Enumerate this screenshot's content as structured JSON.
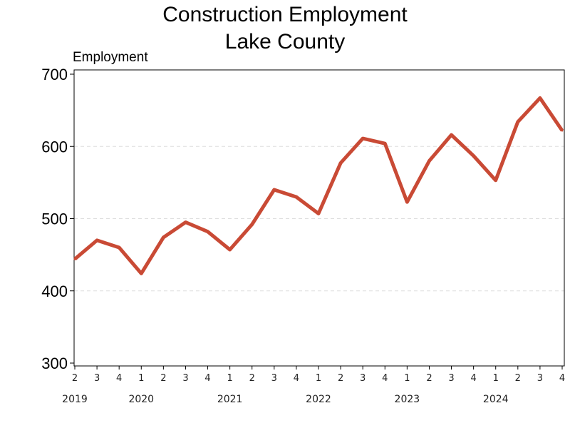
{
  "chart_data": {
    "type": "line",
    "title": "Construction Employment",
    "subtitle": "Lake County",
    "ylabel": "Employment",
    "xlabel": "",
    "ylim": [
      300,
      700
    ],
    "yticks": [
      300,
      400,
      500,
      600,
      700
    ],
    "grid": "horizontal dashed",
    "color": "#c94a35",
    "x": [
      "2019 Q2",
      "2019 Q3",
      "2019 Q4",
      "2020 Q1",
      "2020 Q2",
      "2020 Q3",
      "2020 Q4",
      "2021 Q1",
      "2021 Q2",
      "2021 Q3",
      "2021 Q4",
      "2022 Q1",
      "2022 Q2",
      "2022 Q3",
      "2022 Q4",
      "2023 Q1",
      "2023 Q2",
      "2023 Q3",
      "2023 Q4",
      "2024 Q1",
      "2024 Q2",
      "2024 Q3",
      "2024 Q4"
    ],
    "quarter_labels": [
      "2",
      "3",
      "4",
      "1",
      "2",
      "3",
      "4",
      "1",
      "2",
      "3",
      "4",
      "1",
      "2",
      "3",
      "4",
      "1",
      "2",
      "3",
      "4",
      "1",
      "2",
      "3",
      "4"
    ],
    "year_labels": [
      {
        "label": "2019",
        "at_index": 0
      },
      {
        "label": "2020",
        "at_index": 3
      },
      {
        "label": "2021",
        "at_index": 7
      },
      {
        "label": "2022",
        "at_index": 11
      },
      {
        "label": "2023",
        "at_index": 15
      },
      {
        "label": "2024",
        "at_index": 19
      }
    ],
    "values": [
      444,
      470,
      460,
      424,
      474,
      495,
      482,
      457,
      492,
      540,
      530,
      507,
      577,
      611,
      604,
      523,
      580,
      616,
      587,
      553,
      634,
      667,
      622
    ]
  }
}
